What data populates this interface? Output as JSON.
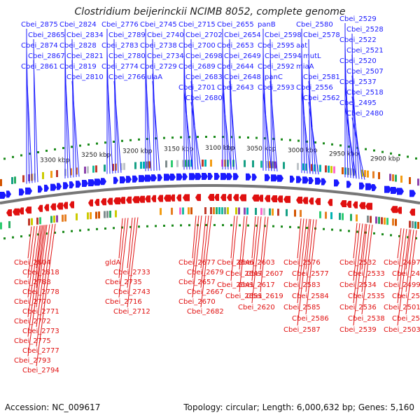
{
  "title": "Clostridium beijerinckii NCIMB 8052, complete genome",
  "footer": {
    "accession": "Accession: NC_009617",
    "topology": "Topology: circular; Length: 6,000,632 bp; Genes: 5,160"
  },
  "colors": {
    "forward_strand": "#1a1aff",
    "reverse_strand": "#e01010",
    "backbone": "#777777",
    "tick": "#1a8a1a"
  },
  "scale_labels": [
    "3300 kbp",
    "3250 kbp",
    "3200 kbp",
    "3150 kbp",
    "3100 kbp",
    "3050 kbp",
    "3000 kbp",
    "2950 kbp",
    "2900 kbp"
  ],
  "top_labels": [
    "Cbei_2875",
    "Cbei_2865",
    "Cbei_2874",
    "Cbei_2867",
    "Cbei_2861",
    "Cbei_2824",
    "Cbei_2834",
    "Cbei_2828",
    "Cbei_2821",
    "Cbei_2819",
    "Cbei_2810",
    "Cbei_2776",
    "Cbei_2789",
    "Cbei_2783",
    "Cbei_2780",
    "Cbei_2774",
    "Cbei_2766",
    "Cbei_2745",
    "Cbei_2740",
    "Cbei_2738",
    "Cbei_2734",
    "Cbei_2729",
    "ulaA",
    "Cbei_2715",
    "Cbei_2702",
    "Cbei_2700",
    "Cbei_2698",
    "Cbei_2689",
    "Cbei_2683",
    "Cbei_2701",
    "Cbei_2680",
    "Cbei_2655",
    "Cbei_2654",
    "Cbei_2653",
    "Cbei_2649",
    "Cbei_2644",
    "Cbei_2648",
    "Cbei_2643",
    "panB",
    "Cbei_2598",
    "Cbei_2595",
    "Cbei_2594",
    "Cbei_2592",
    "panC",
    "Cbei_2593",
    "Cbei_2580",
    "Cbei_2578",
    "aat",
    "mutL",
    "miaA",
    "Cbei_2581",
    "Cbei_2556",
    "Cbei_2562",
    "Cbei_2529",
    "Cbei_2528",
    "Cbei_2522",
    "Cbei_2521",
    "Cbei_2520",
    "Cbei_2507",
    "Cbei_2537",
    "Cbei_2518",
    "Cbei_2495",
    "Cbei_2480"
  ],
  "bottom_labels": [
    "Cbei_2804",
    "Cbei_2818",
    "Cbei_2788",
    "Cbei_2778",
    "Cbei_2770",
    "Cbei_2771",
    "Cbei_2772",
    "Cbei_2773",
    "Cbei_2775",
    "Cbei_2777",
    "Cbei_2793",
    "Cbei_2794",
    "gldA",
    "Cbei_2733",
    "Cbei_2735",
    "Cbei_2743",
    "Cbei_2716",
    "Cbei_2712",
    "Cbei_2677",
    "Cbei_2679",
    "Cbei_2657",
    "Cbei_2667",
    "Cbei_2670",
    "Cbei_2682",
    "Cbei_2646",
    "Cbei_2647",
    "Cbei_2641",
    "Cbei_2651",
    "Cbei_2603",
    "Cbei_2607",
    "Cbei_2617",
    "Cbei_2619",
    "Cbei_2620",
    "Cbei_2576",
    "Cbei_2577",
    "Cbei_2583",
    "Cbei_2584",
    "Cbei_2585",
    "Cbei_2586",
    "Cbei_2587",
    "Cbei_2532",
    "Cbei_2533",
    "Cbei_2534",
    "Cbei_2535",
    "Cbei_2536",
    "Cbei_2538",
    "Cbei_2539",
    "Cbei_2497",
    "Cbei_2498",
    "Cbei_2499",
    "Cbei_2500",
    "Cbei_2501",
    "Cbei_2502",
    "Cbei_2503"
  ]
}
